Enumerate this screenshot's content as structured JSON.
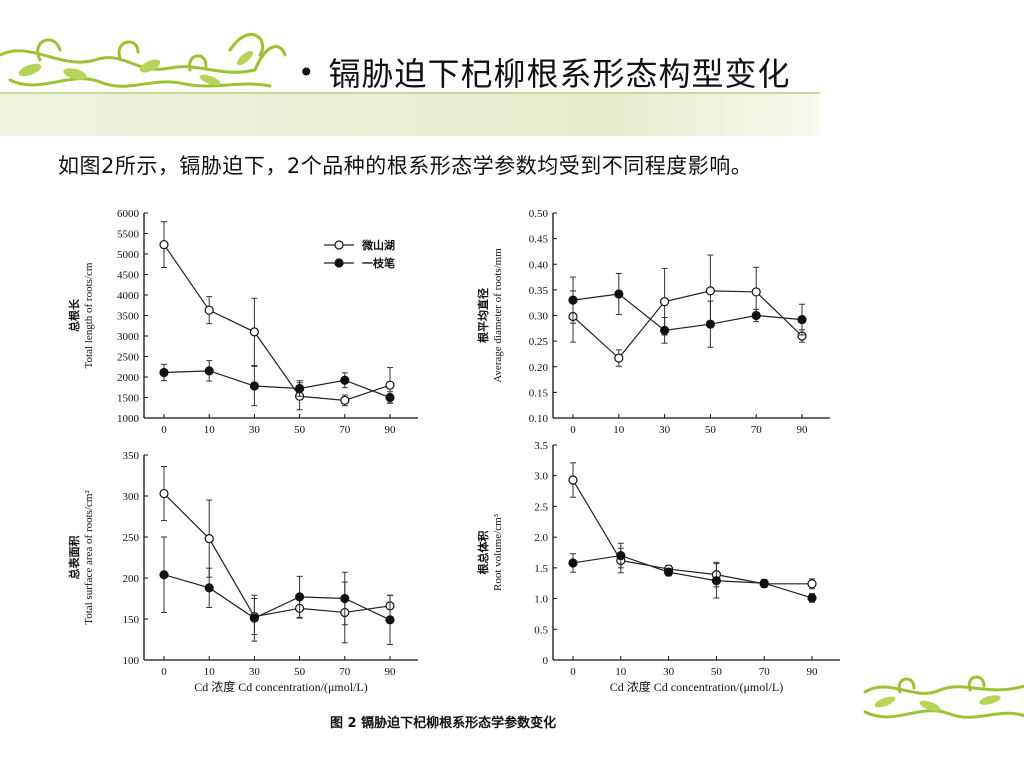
{
  "slide": {
    "title": "镉胁迫下杞柳根系形态构型变化",
    "subtitle": "如图2所示，镉胁迫下，2个品种的根系形态学参数均受到不同程度影响。",
    "caption": "图 2    镉胁迫下杞柳根系形态学参数变化",
    "shared_xlabel": "Cd 浓度 Cd concentration/(μmol/L)",
    "accent_color": "#9bc234",
    "header_band_color": "#eef3dc"
  },
  "chart_data": [
    {
      "type": "line",
      "panel": "top-left",
      "ylabel_cn": "总根长",
      "ylabel_en": "Total length of roots/cm",
      "xlabel": "",
      "categories": [
        "0",
        "10",
        "30",
        "50",
        "70",
        "90"
      ],
      "ylim": [
        1000,
        6000
      ],
      "yticks": [
        "1000",
        "1500",
        "2000",
        "2500",
        "3000",
        "3500",
        "4000",
        "4500",
        "5000",
        "5500",
        "6000"
      ],
      "legend": "top-right",
      "series": [
        {
          "name": "微山湖",
          "marker": "open",
          "values": [
            5230,
            3630,
            3100,
            1530,
            1430,
            1800
          ],
          "errors": [
            560,
            330,
            820,
            330,
            130,
            430
          ]
        },
        {
          "name": "一枝笔",
          "marker": "filled",
          "values": [
            2110,
            2150,
            1780,
            1720,
            1920,
            1500
          ],
          "errors": [
            200,
            250,
            480,
            190,
            180,
            140
          ]
        }
      ]
    },
    {
      "type": "line",
      "panel": "top-right",
      "ylabel_cn": "根平均直径",
      "ylabel_en": "Average diameter of roots/mm",
      "xlabel": "",
      "categories": [
        "0",
        "10",
        "30",
        "50",
        "70",
        "90"
      ],
      "ylim": [
        0.1,
        0.5
      ],
      "yticks": [
        "0.10",
        "0.15",
        "0.20",
        "0.25",
        "0.30",
        "0.35",
        "0.40",
        "0.45",
        "0.50"
      ],
      "series": [
        {
          "marker": "open",
          "values": [
            0.298,
            0.217,
            0.327,
            0.348,
            0.346,
            0.26
          ],
          "errors": [
            0.05,
            0.016,
            0.065,
            0.07,
            0.048,
            0.012
          ]
        },
        {
          "marker": "filled",
          "values": [
            0.33,
            0.342,
            0.271,
            0.283,
            0.3,
            0.292
          ],
          "errors": [
            0.045,
            0.04,
            0.025,
            0.045,
            0.012,
            0.03
          ]
        }
      ]
    },
    {
      "type": "line",
      "panel": "bottom-left",
      "ylabel_cn": "总表面积",
      "ylabel_en": "Total surface area of roots/cm²",
      "xlabel": "Cd 浓度 Cd concentration/(μmol/L)",
      "categories": [
        "0",
        "10",
        "30",
        "50",
        "70",
        "90"
      ],
      "ylim": [
        100,
        350
      ],
      "yticks": [
        "100",
        "150",
        "200",
        "250",
        "300",
        "350"
      ],
      "series": [
        {
          "marker": "open",
          "values": [
            303,
            248,
            153,
            163,
            158,
            166
          ],
          "errors": [
            33,
            47,
            22,
            12,
            37,
            13
          ]
        },
        {
          "marker": "filled",
          "values": [
            204,
            188,
            151,
            177,
            175,
            149
          ],
          "errors": [
            46,
            24,
            28,
            25,
            32,
            30
          ]
        }
      ]
    },
    {
      "type": "line",
      "panel": "bottom-right",
      "ylabel_cn": "根总体积",
      "ylabel_en": "Root volume/cm³",
      "xlabel": "Cd 浓度 Cd concentration/(μmol/L)",
      "categories": [
        "0",
        "10",
        "30",
        "50",
        "70",
        "90"
      ],
      "ylim": [
        0,
        3.5
      ],
      "yticks": [
        "0",
        "0.5",
        "1.0",
        "1.5",
        "2.0",
        "2.5",
        "3.0",
        "3.5"
      ],
      "series": [
        {
          "marker": "open",
          "values": [
            2.93,
            1.62,
            1.48,
            1.39,
            1.24,
            1.24
          ],
          "errors": [
            0.28,
            0.2,
            0.06,
            0.2,
            0.06,
            0.08
          ]
        },
        {
          "marker": "filled",
          "values": [
            1.58,
            1.7,
            1.43,
            1.29,
            1.25,
            1.01
          ],
          "errors": [
            0.15,
            0.2,
            0.06,
            0.28,
            0.06,
            0.07
          ]
        }
      ]
    }
  ]
}
